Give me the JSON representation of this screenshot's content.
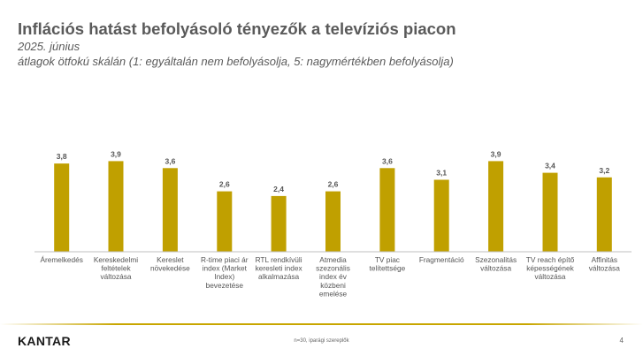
{
  "header": {
    "title": "Inflációs hatást befolyásoló tényezők a televíziós piacon",
    "subtitle": "2025. június",
    "note": "átlagok ötfokú skálán (1: egyáltalán nem befolyásolja, 5: nagymértékben befolyásolja)"
  },
  "colors": {
    "bar": "#C0A000",
    "rule": "#C8A600",
    "axis": "#BFBFBF"
  },
  "chart_data": {
    "type": "bar",
    "categories": [
      "Áremelkedés",
      "Kereskedelmi feltételek változása",
      "Kereslet növekedése",
      "R-time piaci ár index (Market Index) bevezetése",
      "RTL rendkívüli keresleti index alkalmazása",
      "Atmedia szezonális index év közbeni emelése",
      "TV piac telítettsége",
      "Fragmentáció",
      "Szezonalitás változása",
      "TV reach építő képességének változása",
      "Affinitás változása"
    ],
    "values": [
      3.8,
      3.9,
      3.6,
      2.6,
      2.4,
      2.6,
      3.6,
      3.1,
      3.9,
      3.4,
      3.2
    ],
    "value_labels": [
      "3,8",
      "3,9",
      "3,6",
      "2,6",
      "2,4",
      "2,6",
      "3,6",
      "3,1",
      "3,9",
      "3,4",
      "3,2"
    ],
    "category_lines": [
      [
        "Áremelkedés"
      ],
      [
        "Kereskedelmi",
        "feltételek",
        "változása"
      ],
      [
        "Kereslet",
        "növekedése"
      ],
      [
        "R-time piaci ár",
        "index (Market",
        "Index)",
        "bevezetése"
      ],
      [
        "RTL rendkívüli",
        "keresleti index",
        "alkalmazása"
      ],
      [
        "Atmedia",
        "szezonális",
        "index év",
        "közbeni",
        "emelése"
      ],
      [
        "TV piac",
        "telítettsége"
      ],
      [
        "Fragmentáció"
      ],
      [
        "Szezonalitás",
        "változása"
      ],
      [
        "TV reach építő",
        "képességének",
        "változása"
      ],
      [
        "Affinitás",
        "változása"
      ]
    ],
    "ylim": [
      0,
      5
    ],
    "grid": false,
    "legend": "none"
  },
  "footer": {
    "logo": "KANTAR",
    "note": "n=30, iparági szereplők",
    "page": "4"
  }
}
